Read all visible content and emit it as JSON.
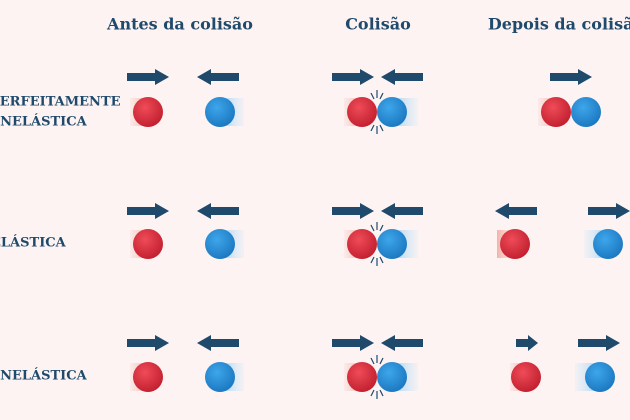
{
  "column_headers": [
    "Antes da colisão",
    "Colisão",
    "Depois da colisão"
  ],
  "row_labels": [
    [
      "PERFEITAMENTE",
      "INELÁSTICA"
    ],
    [
      "ELÁSTICA"
    ],
    [
      "INELÁSTICA"
    ]
  ]
}
